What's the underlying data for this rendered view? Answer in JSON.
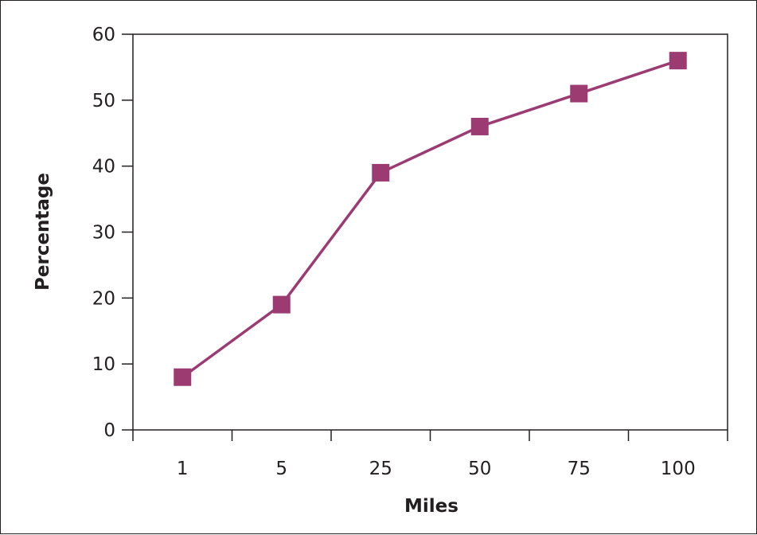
{
  "chart_data": {
    "type": "line",
    "title": "",
    "xlabel": "Miles",
    "ylabel": "Percentage",
    "categories": [
      "1",
      "5",
      "25",
      "50",
      "75",
      "100"
    ],
    "series": [
      {
        "values": [
          8,
          19,
          39,
          46,
          51,
          56
        ]
      }
    ],
    "ylim": [
      0,
      60
    ],
    "yticks": [
      "0",
      "10",
      "20",
      "30",
      "40",
      "50",
      "60"
    ],
    "grid": false,
    "legend": "none",
    "colors": {
      "series": "#9c3a72",
      "axis": "#231f20"
    },
    "marker": "square"
  }
}
